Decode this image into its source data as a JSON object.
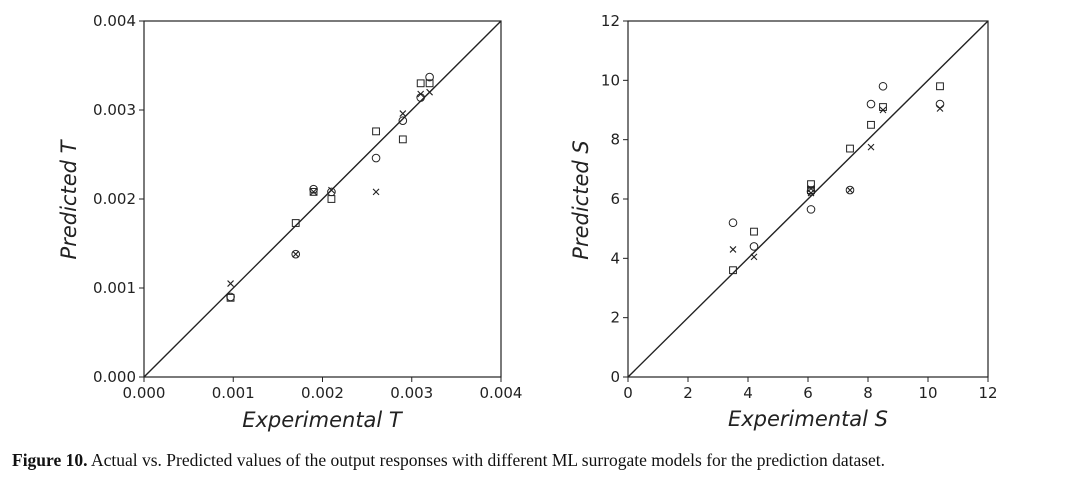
{
  "caption": {
    "label": "Figure 10.",
    "text": "Actual vs. Predicted values of the output responses with different ML surrogate models for the prediction dataset."
  },
  "chart_data": [
    {
      "type": "scatter",
      "title": "",
      "xlabel": "Experimental T",
      "ylabel": "Predicted T",
      "xlim": [
        0,
        0.004
      ],
      "ylim": [
        0,
        0.004
      ],
      "xticks": [
        "0.000",
        "0.001",
        "0.002",
        "0.003",
        "0.004"
      ],
      "yticks": [
        "0.000",
        "0.001",
        "0.002",
        "0.003",
        "0.004"
      ],
      "tick_values": [
        0,
        0.001,
        0.002,
        0.003,
        0.004
      ],
      "grid": false,
      "legend": "none",
      "reference_line": "y = x",
      "series": [
        {
          "marker": "square",
          "points": [
            [
              0.00097,
              0.00089
            ],
            [
              0.0017,
              0.00173
            ],
            [
              0.0019,
              0.00208
            ],
            [
              0.0021,
              0.002
            ],
            [
              0.0026,
              0.00276
            ],
            [
              0.0029,
              0.00267
            ],
            [
              0.0031,
              0.0033
            ],
            [
              0.0032,
              0.0033
            ]
          ]
        },
        {
          "marker": "circle",
          "points": [
            [
              0.00097,
              0.0009
            ],
            [
              0.0017,
              0.00138
            ],
            [
              0.0019,
              0.00211
            ],
            [
              0.0021,
              0.00208
            ],
            [
              0.0026,
              0.00246
            ],
            [
              0.0029,
              0.00288
            ],
            [
              0.0031,
              0.00314
            ],
            [
              0.0032,
              0.00337
            ]
          ]
        },
        {
          "marker": "cross",
          "points": [
            [
              0.00097,
              0.00105
            ],
            [
              0.0017,
              0.00138
            ],
            [
              0.0019,
              0.00208
            ],
            [
              0.0021,
              0.0021
            ],
            [
              0.0026,
              0.00208
            ],
            [
              0.0029,
              0.00296
            ],
            [
              0.0031,
              0.00318
            ],
            [
              0.0032,
              0.0032
            ]
          ]
        }
      ]
    },
    {
      "type": "scatter",
      "title": "",
      "xlabel": "Experimental S",
      "ylabel": "Predicted S",
      "xlim": [
        0,
        12
      ],
      "ylim": [
        0,
        12
      ],
      "xticks": [
        "0",
        "2",
        "4",
        "6",
        "8",
        "10",
        "12"
      ],
      "yticks": [
        "0",
        "2",
        "4",
        "6",
        "8",
        "10",
        "12"
      ],
      "tick_values": [
        0,
        2,
        4,
        6,
        8,
        10,
        12
      ],
      "grid": false,
      "legend": "none",
      "reference_line": "y = x",
      "series": [
        {
          "marker": "square",
          "points": [
            [
              3.5,
              3.6
            ],
            [
              4.2,
              4.9
            ],
            [
              6.1,
              6.5
            ],
            [
              6.1,
              6.3
            ],
            [
              7.4,
              7.7
            ],
            [
              8.1,
              8.5
            ],
            [
              8.5,
              9.1
            ],
            [
              10.4,
              9.8
            ]
          ]
        },
        {
          "marker": "circle",
          "points": [
            [
              3.5,
              5.2
            ],
            [
              4.2,
              4.4
            ],
            [
              6.1,
              5.65
            ],
            [
              6.1,
              6.25
            ],
            [
              7.4,
              6.3
            ],
            [
              8.1,
              9.2
            ],
            [
              8.5,
              9.8
            ],
            [
              10.4,
              9.2
            ]
          ]
        },
        {
          "marker": "cross",
          "points": [
            [
              3.5,
              4.3
            ],
            [
              4.2,
              4.05
            ],
            [
              6.1,
              6.35
            ],
            [
              6.1,
              6.2
            ],
            [
              7.4,
              6.3
            ],
            [
              8.1,
              7.75
            ],
            [
              8.5,
              9.0
            ],
            [
              10.4,
              9.05
            ]
          ]
        }
      ]
    }
  ]
}
